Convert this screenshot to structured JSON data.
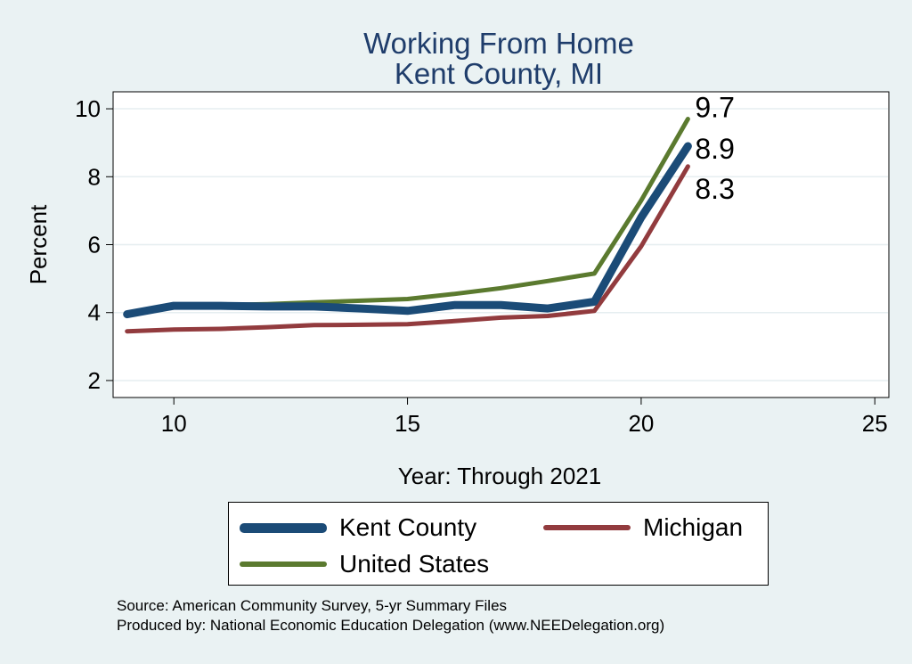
{
  "title": [
    "Working From Home",
    "Kent County, MI"
  ],
  "source_lines": [
    "Source: American Community Survey, 5-yr Summary Files",
    "Produced by: National Economic Education Delegation (www.NEEDelegation.org)"
  ],
  "chart_data": {
    "type": "line",
    "title": "Working From Home Kent County, MI",
    "xlabel": "Year: Through 2021",
    "ylabel": "Percent",
    "xlim": [
      8.7,
      25.3
    ],
    "ylim": [
      1.5,
      10.5
    ],
    "xticks": [
      10,
      15,
      20,
      25
    ],
    "yticks": [
      2,
      4,
      6,
      8,
      10
    ],
    "grid": "horizontal",
    "legend": "bottom",
    "series": [
      {
        "name": "Kent County",
        "color": "#1b4b77",
        "width": 9,
        "x": [
          9,
          10,
          11,
          12,
          13,
          14,
          15,
          16,
          17,
          18,
          19,
          20,
          21
        ],
        "values": [
          3.95,
          4.2,
          4.2,
          4.18,
          4.18,
          4.12,
          4.05,
          4.22,
          4.22,
          4.12,
          4.32,
          6.8,
          8.9
        ],
        "end_label": "8.9"
      },
      {
        "name": "Michigan",
        "color": "#923b3e",
        "width": 5,
        "x": [
          9,
          10,
          11,
          12,
          13,
          14,
          15,
          16,
          17,
          18,
          19,
          20,
          21
        ],
        "values": [
          3.45,
          3.5,
          3.52,
          3.57,
          3.63,
          3.64,
          3.66,
          3.75,
          3.85,
          3.9,
          4.05,
          5.95,
          8.3
        ],
        "end_label": "8.3"
      },
      {
        "name": "United States",
        "color": "#5b7a2f",
        "width": 5,
        "x": [
          9,
          10,
          11,
          12,
          13,
          14,
          15,
          16,
          17,
          18,
          19,
          20,
          21
        ],
        "values": [
          4.0,
          4.15,
          4.22,
          4.25,
          4.3,
          4.35,
          4.4,
          4.55,
          4.72,
          4.93,
          5.15,
          7.3,
          9.7
        ],
        "end_label": "9.7"
      }
    ]
  }
}
